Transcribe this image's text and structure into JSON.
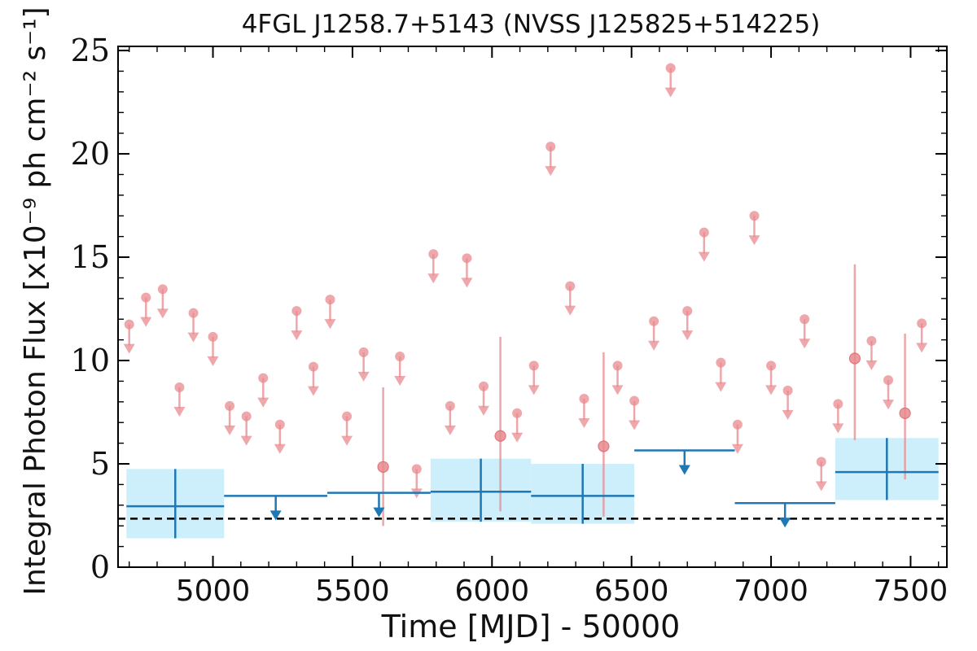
{
  "chart_data": {
    "type": "scatter",
    "title": "4FGL J1258.7+5143 (NVSS J125825+514225)",
    "xlabel": "Time [MJD] - 50000",
    "ylabel": "Integral Photon Flux [x10⁻⁹ ph cm⁻² s⁻¹]",
    "xlim": [
      4660,
      7630
    ],
    "ylim": [
      0,
      25.2
    ],
    "xticks": [
      5000,
      5500,
      6000,
      6500,
      7000,
      7500
    ],
    "xtick_labels": [
      "5000",
      "5500",
      "6000",
      "6500",
      "7000",
      "7500"
    ],
    "yticks": [
      0,
      5,
      10,
      15,
      20,
      25
    ],
    "ytick_labels": [
      "0",
      "5",
      "10",
      "15",
      "20",
      "25"
    ],
    "grid": false,
    "legend": "none",
    "reference_line": {
      "y": 2.35,
      "style": "dashed",
      "color": "#000000"
    },
    "colors": {
      "short_bin": "#e88a8e",
      "long_bin": "#1f77b4",
      "long_bin_band": "#cdeefb"
    },
    "series": [
      {
        "color": "#e88a8e",
        "upper_limits": [
          {
            "x": 4700,
            "y": 11.75
          },
          {
            "x": 4760,
            "y": 13.05
          },
          {
            "x": 4820,
            "y": 13.45
          },
          {
            "x": 4880,
            "y": 8.7
          },
          {
            "x": 4930,
            "y": 12.3
          },
          {
            "x": 5000,
            "y": 11.15
          },
          {
            "x": 5060,
            "y": 7.8
          },
          {
            "x": 5120,
            "y": 7.3
          },
          {
            "x": 5180,
            "y": 9.15
          },
          {
            "x": 5240,
            "y": 6.9
          },
          {
            "x": 5300,
            "y": 12.4
          },
          {
            "x": 5360,
            "y": 9.7
          },
          {
            "x": 5420,
            "y": 12.95
          },
          {
            "x": 5480,
            "y": 7.3
          },
          {
            "x": 5540,
            "y": 10.4
          },
          {
            "x": 5670,
            "y": 10.2
          },
          {
            "x": 5730,
            "y": 4.75
          },
          {
            "x": 5790,
            "y": 15.15
          },
          {
            "x": 5850,
            "y": 7.8
          },
          {
            "x": 5910,
            "y": 14.95
          },
          {
            "x": 5970,
            "y": 8.75
          },
          {
            "x": 6090,
            "y": 7.45
          },
          {
            "x": 6150,
            "y": 9.75
          },
          {
            "x": 6210,
            "y": 20.35
          },
          {
            "x": 6280,
            "y": 13.6
          },
          {
            "x": 6330,
            "y": 8.15
          },
          {
            "x": 6450,
            "y": 9.75
          },
          {
            "x": 6510,
            "y": 8.05
          },
          {
            "x": 6580,
            "y": 11.9
          },
          {
            "x": 6640,
            "y": 24.15
          },
          {
            "x": 6700,
            "y": 12.4
          },
          {
            "x": 6760,
            "y": 16.2
          },
          {
            "x": 6820,
            "y": 9.9
          },
          {
            "x": 6880,
            "y": 6.9
          },
          {
            "x": 6940,
            "y": 17.0
          },
          {
            "x": 7000,
            "y": 9.75
          },
          {
            "x": 7060,
            "y": 8.55
          },
          {
            "x": 7120,
            "y": 12.0
          },
          {
            "x": 7180,
            "y": 5.1
          },
          {
            "x": 7240,
            "y": 7.9
          },
          {
            "x": 7360,
            "y": 10.95
          },
          {
            "x": 7420,
            "y": 9.05
          },
          {
            "x": 7540,
            "y": 11.8
          }
        ],
        "detections": [
          {
            "x": 5610,
            "y": 4.85,
            "yerr_low": 2.0,
            "yerr_high": 8.7
          },
          {
            "x": 6030,
            "y": 6.35,
            "yerr_low": 2.7,
            "yerr_high": 11.15
          },
          {
            "x": 6400,
            "y": 5.85,
            "yerr_low": 2.45,
            "yerr_high": 10.4
          },
          {
            "x": 7300,
            "y": 10.1,
            "yerr_low": 6.15,
            "yerr_high": 14.65
          },
          {
            "x": 7480,
            "y": 7.45,
            "yerr_low": 4.25,
            "yerr_high": 11.3
          }
        ]
      },
      {
        "color": "#1f77b4",
        "detections": [
          {
            "x0": 4690,
            "x1": 5040,
            "y": 2.95,
            "y_low": 1.4,
            "y_high": 4.75
          },
          {
            "x0": 5780,
            "x1": 6140,
            "y": 3.65,
            "y_low": 2.2,
            "y_high": 5.25
          },
          {
            "x0": 6140,
            "x1": 6510,
            "y": 3.45,
            "y_low": 2.1,
            "y_high": 5.0
          },
          {
            "x0": 7230,
            "x1": 7600,
            "y": 4.6,
            "y_low": 3.25,
            "y_high": 6.25
          }
        ],
        "upper_limits": [
          {
            "x0": 5040,
            "x1": 5410,
            "y": 3.45
          },
          {
            "x0": 5410,
            "x1": 5780,
            "y": 3.6
          },
          {
            "x0": 6510,
            "x1": 6870,
            "y": 5.65
          },
          {
            "x0": 6870,
            "x1": 7230,
            "y": 3.1
          }
        ]
      }
    ]
  }
}
